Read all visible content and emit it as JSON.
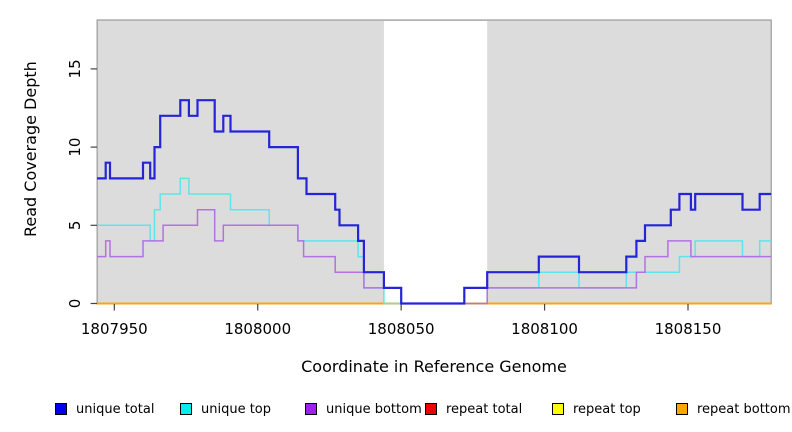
{
  "figure": {
    "background_color": "#ffffff",
    "plot_background_color": "#dcdcdc",
    "plot_border_color": "#8a8a8a",
    "masked_region_color": "#ffffff",
    "tick_color": "#444444"
  },
  "axes": {
    "x": {
      "label": "Coordinate in Reference Genome",
      "ticks": [
        1807950,
        1808000,
        1808050,
        1808100,
        1808150
      ],
      "range": [
        1807944,
        1808179
      ]
    },
    "y": {
      "label": "Read Coverage Depth",
      "ticks": [
        0,
        5,
        10,
        15
      ],
      "range": [
        0,
        18.1
      ]
    }
  },
  "chart_data": {
    "type": "line",
    "subtype": "step",
    "title": "",
    "xlabel": "Coordinate in Reference Genome",
    "ylabel": "Read Coverage Depth",
    "xlim": [
      1807944,
      1808179
    ],
    "ylim": [
      0,
      18.1
    ],
    "grid": false,
    "masked_region": {
      "from": 1808044,
      "to": 1808080
    },
    "legend_position": "bottom",
    "series": [
      {
        "name": "unique total",
        "line_color": "#2525d8",
        "swatch_color": "#0000ee",
        "line_width": 2.2,
        "steps": [
          [
            1807944,
            8
          ],
          [
            1807947,
            9
          ],
          [
            1807948.5,
            8
          ],
          [
            1807960,
            9
          ],
          [
            1807962.5,
            8
          ],
          [
            1807964,
            10
          ],
          [
            1807966,
            12
          ],
          [
            1807973,
            13
          ],
          [
            1807976,
            12
          ],
          [
            1807979,
            13
          ],
          [
            1807985,
            11
          ],
          [
            1807988,
            12
          ],
          [
            1807990.5,
            11
          ],
          [
            1808004,
            10
          ],
          [
            1808014,
            8
          ],
          [
            1808017,
            7
          ],
          [
            1808027,
            6
          ],
          [
            1808028.5,
            5
          ],
          [
            1808035,
            4
          ],
          [
            1808037,
            2
          ],
          [
            1808044,
            1
          ],
          [
            1808050,
            0
          ],
          [
            1808072,
            1
          ],
          [
            1808080,
            2
          ],
          [
            1808098,
            3
          ],
          [
            1808112,
            2
          ],
          [
            1808128.5,
            3
          ],
          [
            1808132,
            4
          ],
          [
            1808135,
            5
          ],
          [
            1808144,
            6
          ],
          [
            1808147,
            7
          ],
          [
            1808151,
            6
          ],
          [
            1808152.5,
            7
          ],
          [
            1808169,
            6
          ],
          [
            1808175,
            7
          ]
        ]
      },
      {
        "name": "unique top",
        "line_color": "#5fe4ea",
        "swatch_color": "#00eeee",
        "line_width": 1.5,
        "steps": [
          [
            1807944,
            5
          ],
          [
            1807962.5,
            4
          ],
          [
            1807964,
            6
          ],
          [
            1807966,
            7
          ],
          [
            1807973,
            8
          ],
          [
            1807976,
            7
          ],
          [
            1807990.5,
            6
          ],
          [
            1808004,
            5
          ],
          [
            1808014,
            4
          ],
          [
            1808035,
            3
          ],
          [
            1808037,
            1
          ],
          [
            1808044,
            0
          ],
          [
            1808072,
            1
          ],
          [
            1808098,
            2
          ],
          [
            1808112,
            1
          ],
          [
            1808128.5,
            2
          ],
          [
            1808147,
            3
          ],
          [
            1808152.5,
            4
          ],
          [
            1808169,
            3
          ],
          [
            1808175,
            4
          ]
        ]
      },
      {
        "name": "unique bottom",
        "line_color": "#b272e2",
        "swatch_color": "#a020f0",
        "line_width": 1.5,
        "steps": [
          [
            1807944,
            3
          ],
          [
            1807947,
            4
          ],
          [
            1807948.5,
            3
          ],
          [
            1807960,
            4
          ],
          [
            1807967,
            5
          ],
          [
            1807979,
            6
          ],
          [
            1807985,
            4
          ],
          [
            1807988,
            5
          ],
          [
            1808014,
            4
          ],
          [
            1808016,
            3
          ],
          [
            1808027,
            2
          ],
          [
            1808037,
            1
          ],
          [
            1808050,
            0
          ],
          [
            1808080,
            1
          ],
          [
            1808132,
            2
          ],
          [
            1808135,
            3
          ],
          [
            1808143,
            4
          ],
          [
            1808151,
            3
          ]
        ]
      },
      {
        "name": "repeat total",
        "line_color": "#dd0000",
        "swatch_color": "#ee0000",
        "line_width": 1.5,
        "steps": [
          [
            1807944,
            0
          ]
        ]
      },
      {
        "name": "repeat top",
        "line_color": "#f2f200",
        "swatch_color": "#ffff00",
        "line_width": 1.5,
        "steps": [
          [
            1807944,
            0
          ]
        ]
      },
      {
        "name": "repeat bottom",
        "line_color": "#ffa500",
        "swatch_color": "#ffa500",
        "line_width": 1.8,
        "steps": [
          [
            1807944,
            0
          ]
        ]
      }
    ]
  },
  "legend": {
    "items": [
      {
        "label": "unique total",
        "swatch_color": "#0000ee"
      },
      {
        "label": "unique top",
        "swatch_color": "#00eeee"
      },
      {
        "label": "unique bottom",
        "swatch_color": "#a020f0"
      },
      {
        "label": "repeat total",
        "swatch_color": "#ee0000"
      },
      {
        "label": "repeat top",
        "swatch_color": "#ffff00"
      },
      {
        "label": "repeat bottom",
        "swatch_color": "#ffa500"
      }
    ]
  }
}
